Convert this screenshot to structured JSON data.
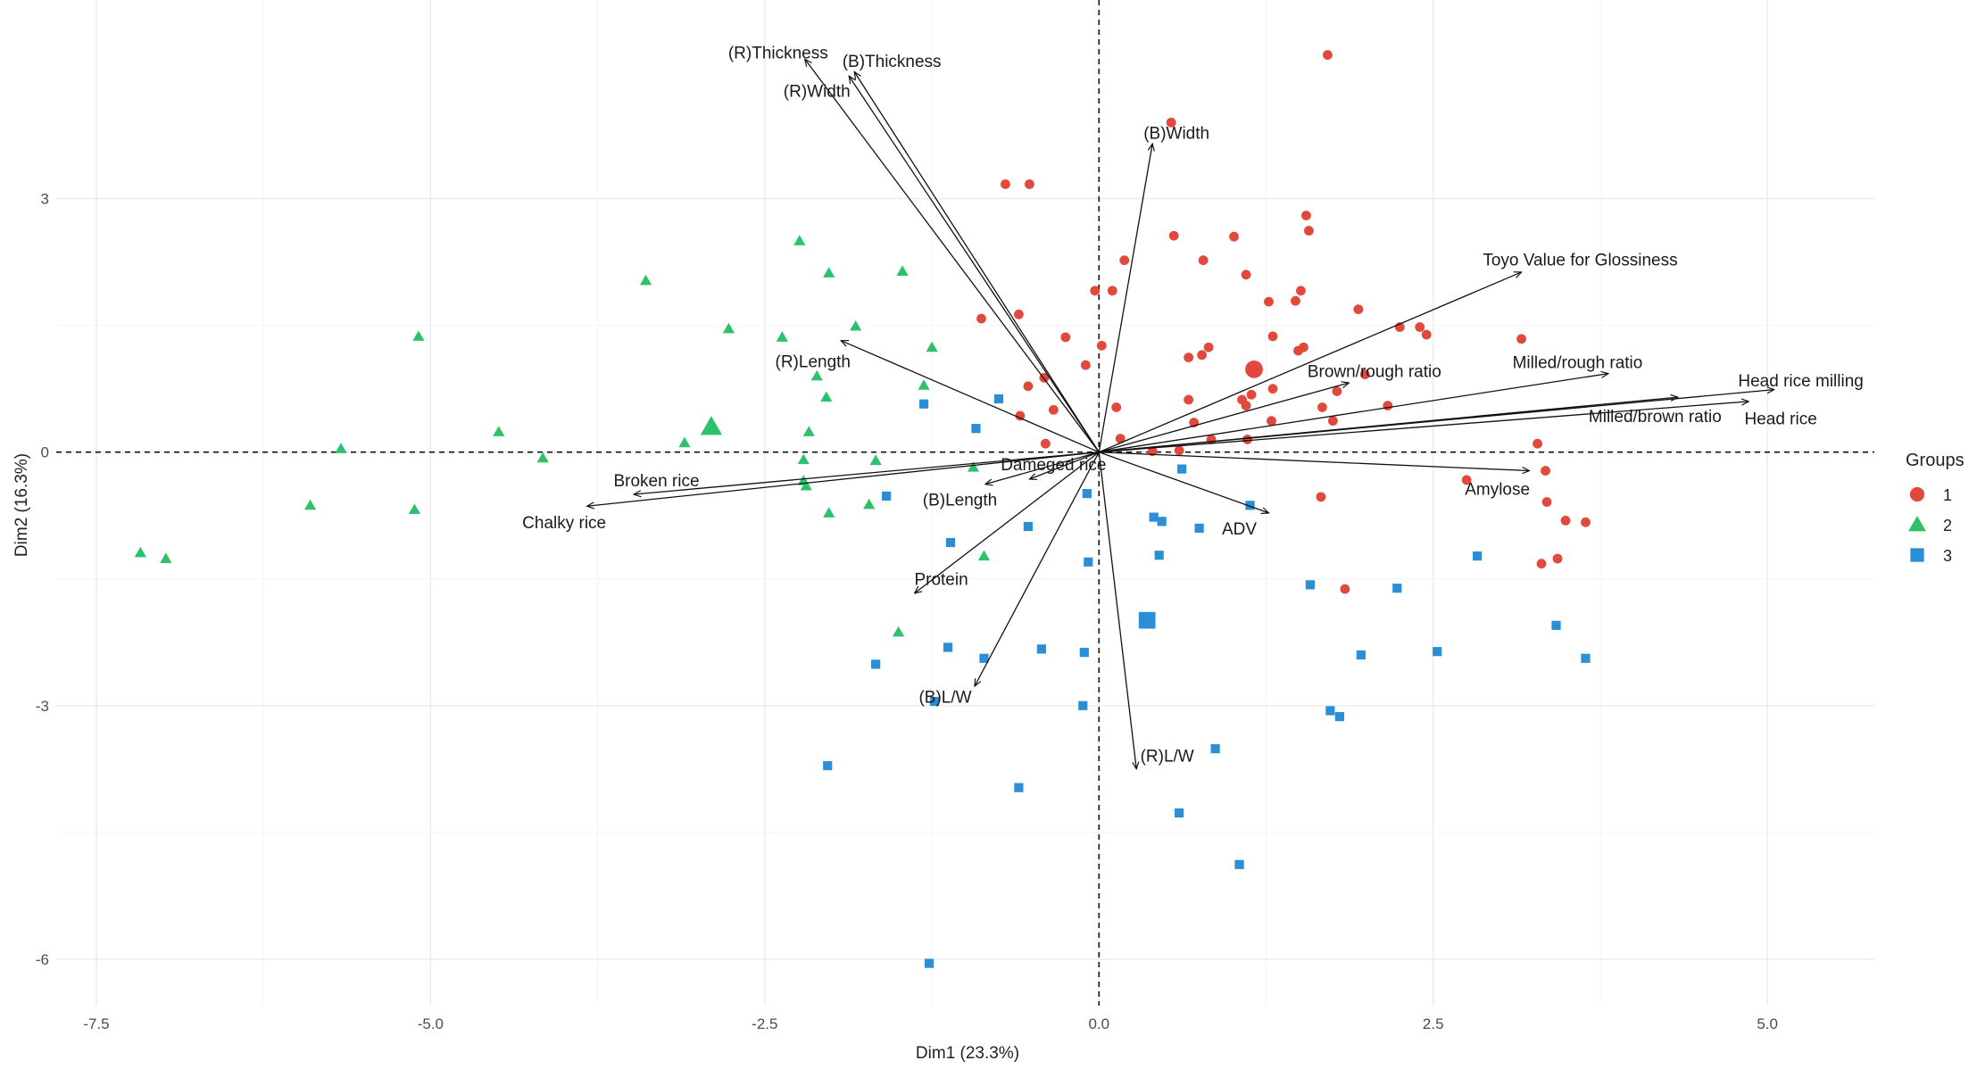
{
  "chart_data": {
    "type": "scatter",
    "title": "",
    "xlabel": "Dim1 (23.3%)",
    "ylabel": "Dim2 (16.3%)",
    "xlim": [
      -7.8,
      5.8
    ],
    "ylim": [
      -6.55,
      5.35
    ],
    "xticks": [
      -7.5,
      -5.0,
      -2.5,
      0.0,
      2.5,
      5.0
    ],
    "xtick_labels": [
      "-7.5",
      "-5.0",
      "-2.5",
      "0.0",
      "2.5",
      "5.0"
    ],
    "yticks": [
      -6,
      -3,
      0,
      3
    ],
    "ytick_labels": [
      "-6",
      "-3",
      "0",
      "3"
    ],
    "grid": true,
    "legend": {
      "title": "Groups",
      "position": "right",
      "entries": [
        {
          "label": "1",
          "color": "#E0493B",
          "shape": "diamond"
        },
        {
          "label": "2",
          "color": "#2DC26A",
          "shape": "triangle"
        },
        {
          "label": "3",
          "color": "#2C8FD6",
          "shape": "square"
        }
      ]
    },
    "series": [
      {
        "name": "1",
        "color": "#E0493B",
        "centroid": [
          1.16,
          0.98
        ],
        "points": [
          [
            1.71,
            4.7
          ],
          [
            0.54,
            3.9
          ],
          [
            -0.7,
            3.17
          ],
          [
            -0.52,
            3.17
          ],
          [
            1.55,
            2.8
          ],
          [
            1.57,
            2.62
          ],
          [
            0.56,
            2.56
          ],
          [
            1.01,
            2.55
          ],
          [
            0.78,
            2.27
          ],
          [
            0.19,
            2.27
          ],
          [
            1.1,
            2.1
          ],
          [
            -0.03,
            1.91
          ],
          [
            0.1,
            1.91
          ],
          [
            1.51,
            1.91
          ],
          [
            1.27,
            1.78
          ],
          [
            1.47,
            1.79
          ],
          [
            1.94,
            1.69
          ],
          [
            -0.6,
            1.63
          ],
          [
            -0.88,
            1.58
          ],
          [
            2.25,
            1.48
          ],
          [
            2.4,
            1.48
          ],
          [
            2.45,
            1.39
          ],
          [
            1.3,
            1.37
          ],
          [
            -0.25,
            1.36
          ],
          [
            3.16,
            1.34
          ],
          [
            0.82,
            1.24
          ],
          [
            0.02,
            1.26
          ],
          [
            1.53,
            1.24
          ],
          [
            1.49,
            1.2
          ],
          [
            0.77,
            1.15
          ],
          [
            0.67,
            1.12
          ],
          [
            -0.1,
            1.03
          ],
          [
            1.99,
            0.92
          ],
          [
            -0.41,
            0.88
          ],
          [
            -0.53,
            0.78
          ],
          [
            1.3,
            0.75
          ],
          [
            1.78,
            0.72
          ],
          [
            1.14,
            0.68
          ],
          [
            0.67,
            0.62
          ],
          [
            1.07,
            0.62
          ],
          [
            1.1,
            0.55
          ],
          [
            2.16,
            0.55
          ],
          [
            0.13,
            0.53
          ],
          [
            1.67,
            0.53
          ],
          [
            -0.34,
            0.5
          ],
          [
            -0.59,
            0.43
          ],
          [
            1.29,
            0.37
          ],
          [
            1.75,
            0.37
          ],
          [
            0.71,
            0.35
          ],
          [
            0.16,
            0.16
          ],
          [
            0.84,
            0.15
          ],
          [
            1.11,
            0.15
          ],
          [
            -0.4,
            0.1
          ],
          [
            3.28,
            0.1
          ],
          [
            0.6,
            0.02
          ],
          [
            0.4,
            0.01
          ],
          [
            3.34,
            -0.22
          ],
          [
            2.75,
            -0.33
          ],
          [
            1.66,
            -0.53
          ],
          [
            3.35,
            -0.59
          ],
          [
            3.49,
            -0.81
          ],
          [
            3.64,
            -0.83
          ],
          [
            3.43,
            -1.26
          ],
          [
            3.31,
            -1.32
          ],
          [
            1.84,
            -1.62
          ]
        ]
      },
      {
        "name": "2",
        "color": "#2DC26A",
        "centroid": [
          -2.9,
          0.3
        ],
        "points": [
          [
            -2.24,
            2.5
          ],
          [
            -2.02,
            2.12
          ],
          [
            -1.47,
            2.14
          ],
          [
            -3.39,
            2.03
          ],
          [
            -1.82,
            1.49
          ],
          [
            -2.77,
            1.46
          ],
          [
            -2.37,
            1.36
          ],
          [
            -5.09,
            1.37
          ],
          [
            -1.25,
            1.24
          ],
          [
            -2.11,
            0.9
          ],
          [
            -1.31,
            0.79
          ],
          [
            -2.04,
            0.65
          ],
          [
            -4.49,
            0.24
          ],
          [
            -2.17,
            0.24
          ],
          [
            -3.1,
            0.11
          ],
          [
            -5.67,
            0.04
          ],
          [
            -4.16,
            -0.07
          ],
          [
            -2.21,
            -0.09
          ],
          [
            -1.67,
            -0.1
          ],
          [
            -2.21,
            -0.34
          ],
          [
            -2.19,
            -0.4
          ],
          [
            -5.9,
            -0.63
          ],
          [
            -5.12,
            -0.68
          ],
          [
            -1.72,
            -0.62
          ],
          [
            -2.02,
            -0.72
          ],
          [
            -7.17,
            -1.19
          ],
          [
            -6.98,
            -1.26
          ],
          [
            -0.86,
            -1.23
          ],
          [
            -1.5,
            -2.13
          ],
          [
            -0.94,
            -0.18
          ]
        ]
      },
      {
        "name": "3",
        "color": "#2C8FD6",
        "centroid": [
          0.36,
          -1.99
        ],
        "points": [
          [
            -0.75,
            0.63
          ],
          [
            -1.31,
            0.57
          ],
          [
            -0.92,
            0.28
          ],
          [
            0.62,
            -0.2
          ],
          [
            -0.09,
            -0.49
          ],
          [
            -1.59,
            -0.52
          ],
          [
            1.13,
            -0.63
          ],
          [
            0.41,
            -0.77
          ],
          [
            0.47,
            -0.82
          ],
          [
            -0.53,
            -0.88
          ],
          [
            0.75,
            -0.9
          ],
          [
            -1.11,
            -1.07
          ],
          [
            0.45,
            -1.22
          ],
          [
            2.83,
            -1.23
          ],
          [
            -0.08,
            -1.3
          ],
          [
            1.58,
            -1.57
          ],
          [
            2.23,
            -1.61
          ],
          [
            3.42,
            -2.05
          ],
          [
            -1.13,
            -2.31
          ],
          [
            -0.43,
            -2.33
          ],
          [
            -0.11,
            -2.37
          ],
          [
            1.96,
            -2.4
          ],
          [
            2.53,
            -2.36
          ],
          [
            3.64,
            -2.44
          ],
          [
            -0.86,
            -2.44
          ],
          [
            -1.67,
            -2.51
          ],
          [
            -1.23,
            -2.95
          ],
          [
            -0.12,
            -3.0
          ],
          [
            1.73,
            -3.06
          ],
          [
            1.8,
            -3.13
          ],
          [
            0.87,
            -3.51
          ],
          [
            -2.03,
            -3.71
          ],
          [
            -0.6,
            -3.97
          ],
          [
            0.6,
            -4.27
          ],
          [
            1.05,
            -4.88
          ],
          [
            -1.27,
            -6.05
          ]
        ]
      }
    ],
    "vectors": [
      {
        "label": "(R)Thickness",
        "end": [
          -2.2,
          4.65
        ],
        "label_pos": [
          -2.4,
          4.72
        ]
      },
      {
        "label": "(B)Thickness",
        "end": [
          -1.83,
          4.5
        ],
        "label_pos": [
          -1.55,
          4.62
        ]
      },
      {
        "label": "(R)Width",
        "end": [
          -1.87,
          4.45
        ],
        "label_pos": [
          -2.11,
          4.27
        ]
      },
      {
        "label": "(B)Width",
        "end": [
          0.4,
          3.65
        ],
        "label_pos": [
          0.58,
          3.77
        ]
      },
      {
        "label": "Toyo Value for Glossiness",
        "end": [
          3.16,
          2.13
        ],
        "label_pos": [
          3.6,
          2.27
        ]
      },
      {
        "label": "(R)Length",
        "end": [
          -1.93,
          1.32
        ],
        "label_pos": [
          -2.14,
          1.07
        ]
      },
      {
        "label": "Brown/rough ratio",
        "end": [
          1.87,
          0.82
        ],
        "label_pos": [
          2.06,
          0.95
        ]
      },
      {
        "label": "Milled/rough ratio",
        "end": [
          3.81,
          0.93
        ],
        "label_pos": [
          3.58,
          1.06
        ]
      },
      {
        "label": "Head rice milling",
        "end": [
          5.05,
          0.74
        ],
        "label_pos": [
          5.25,
          0.84
        ]
      },
      {
        "label": "Milled/brown ratio",
        "end": [
          4.33,
          0.65
        ],
        "label_pos": [
          4.16,
          0.42
        ]
      },
      {
        "label": "Head rice",
        "end": [
          4.86,
          0.6
        ],
        "label_pos": [
          5.1,
          0.39
        ]
      },
      {
        "label": "Amylose",
        "end": [
          3.22,
          -0.22
        ],
        "label_pos": [
          2.98,
          -0.44
        ]
      },
      {
        "label": "ADV",
        "end": [
          1.27,
          -0.72
        ],
        "label_pos": [
          1.05,
          -0.91
        ]
      },
      {
        "label": "Dameged rice",
        "end": [
          -0.52,
          -0.32
        ],
        "label_pos": [
          -0.34,
          -0.15
        ]
      },
      {
        "label": "(B)Length",
        "end": [
          -0.85,
          -0.38
        ],
        "label_pos": [
          -1.04,
          -0.57
        ]
      },
      {
        "label": "Broken rice",
        "end": [
          -3.48,
          -0.5
        ],
        "label_pos": [
          -3.31,
          -0.34
        ]
      },
      {
        "label": "Chalky rice",
        "end": [
          -3.83,
          -0.64
        ],
        "label_pos": [
          -4.0,
          -0.84
        ]
      },
      {
        "label": "Protein",
        "end": [
          -1.38,
          -1.67
        ],
        "label_pos": [
          -1.18,
          -1.51
        ]
      },
      {
        "label": "(B)L/W",
        "end": [
          -0.93,
          -2.77
        ],
        "label_pos": [
          -1.15,
          -2.9
        ]
      },
      {
        "label": "(R)L/W",
        "end": [
          0.28,
          -3.75
        ],
        "label_pos": [
          0.51,
          -3.6
        ]
      }
    ]
  }
}
